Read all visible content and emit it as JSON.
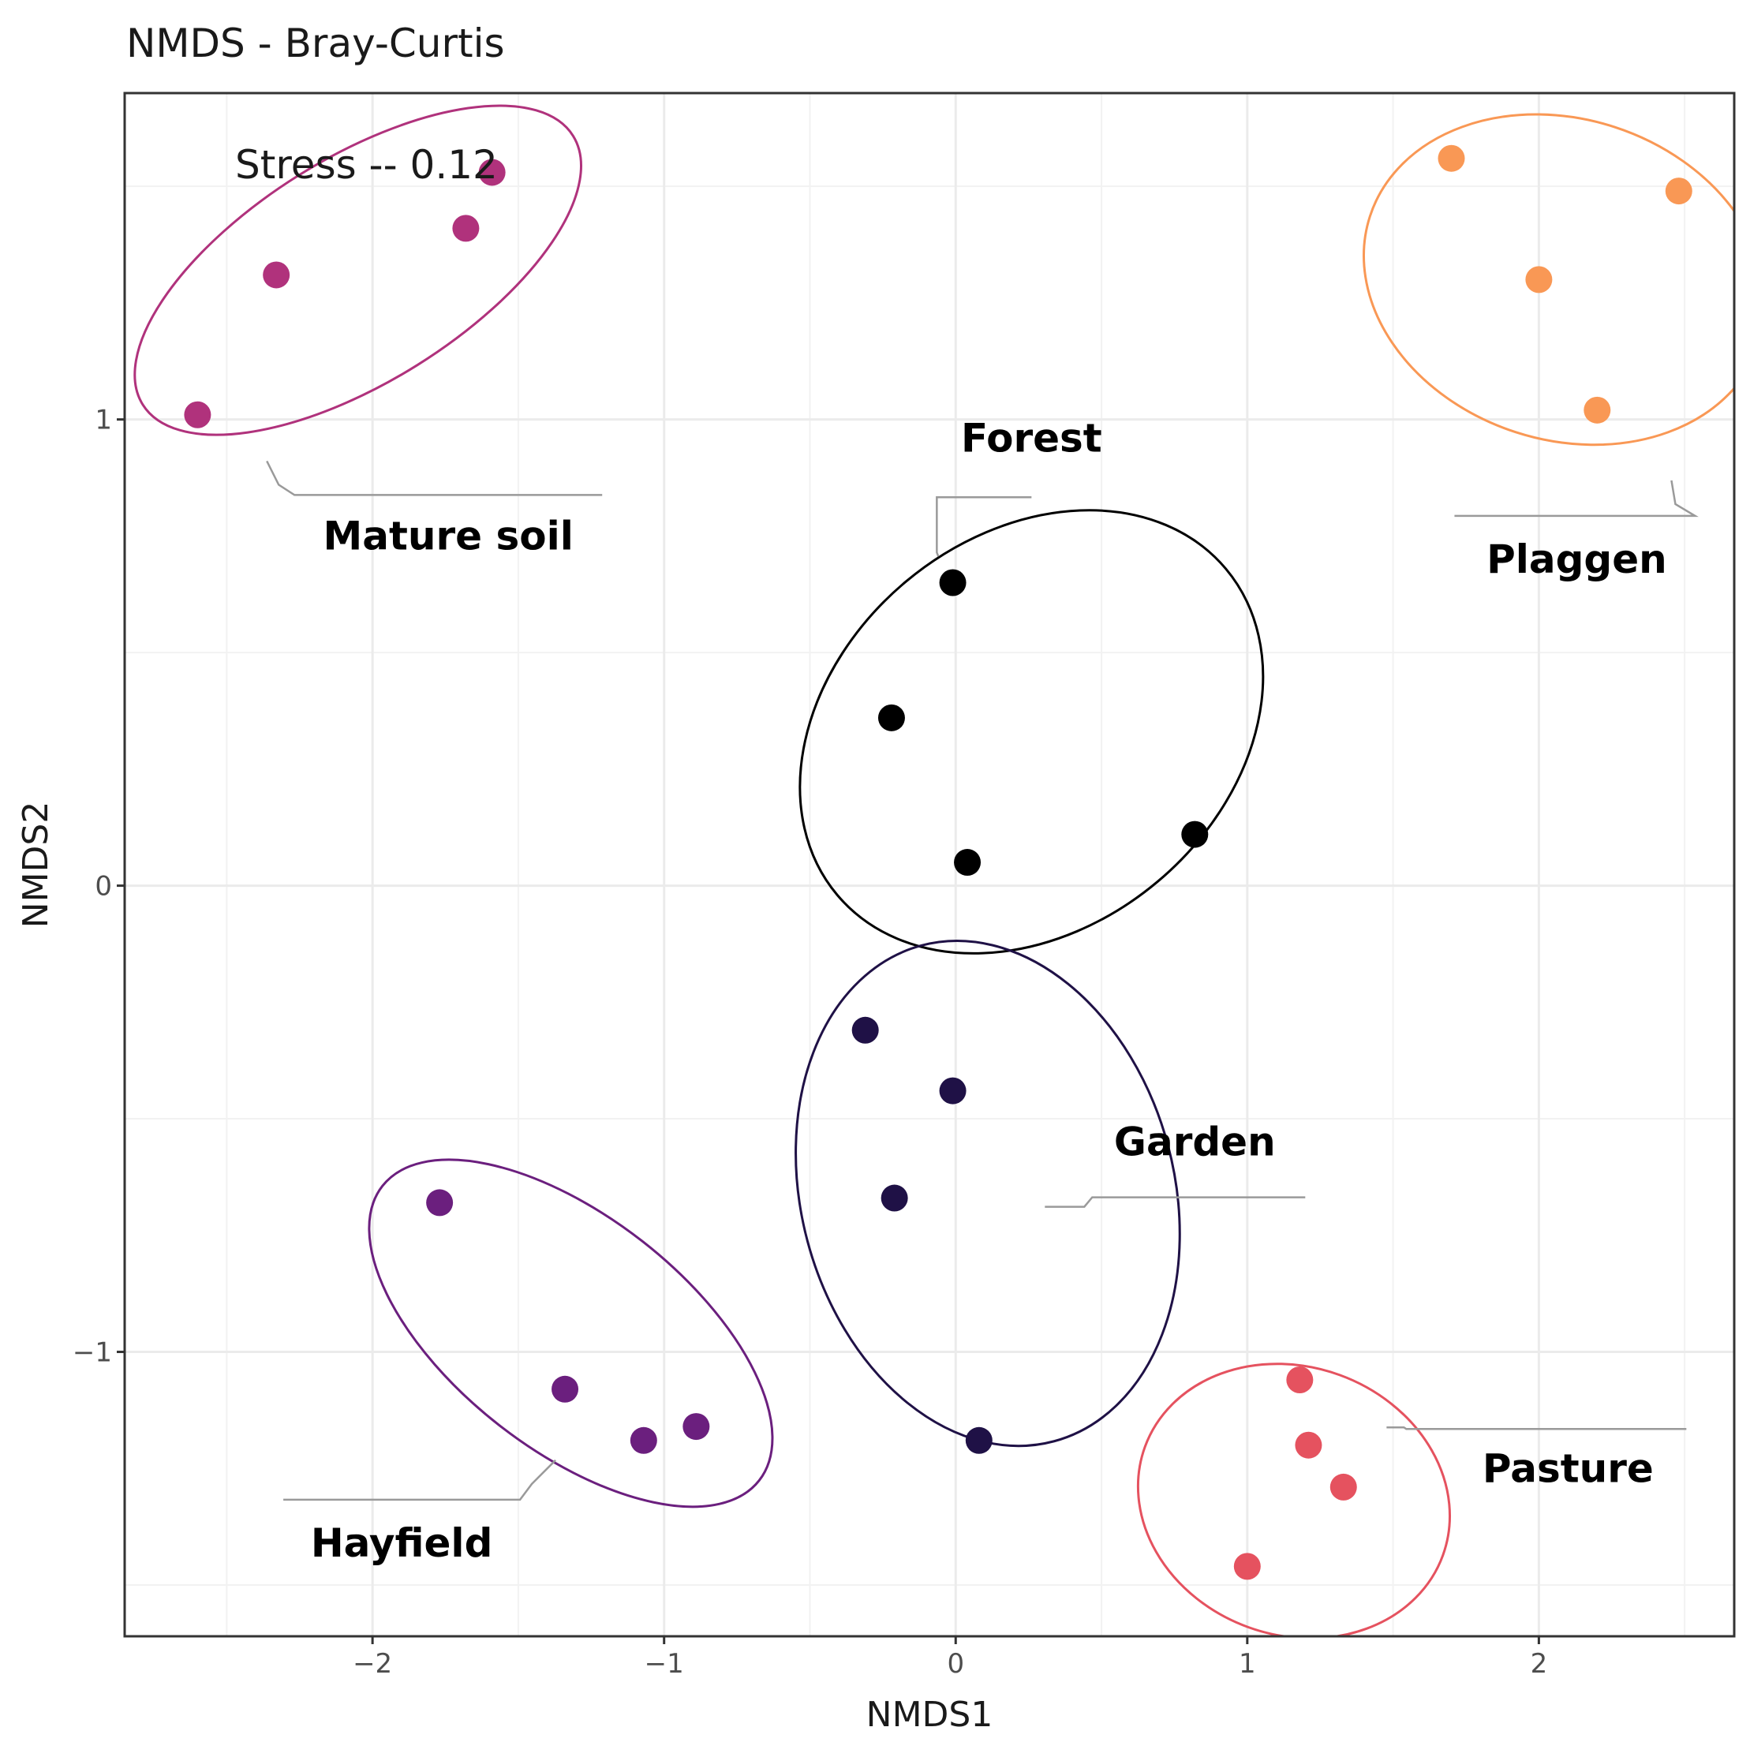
{
  "chart_data": {
    "type": "scatter",
    "title": "NMDS - Bray-Curtis",
    "xlabel": "NMDS1",
    "ylabel": "NMDS2",
    "xlim": [
      -2.85,
      2.67
    ],
    "ylim": [
      -1.61,
      1.7
    ],
    "x_ticks": [
      -2,
      -1,
      0,
      1,
      2
    ],
    "x_tick_labels": [
      "−2",
      "−1",
      "0",
      "1",
      "2"
    ],
    "y_ticks": [
      -1,
      0,
      1
    ],
    "y_tick_labels": [
      "−1",
      "0",
      "1"
    ],
    "grid": true,
    "annotation": "Stress -- 0.12",
    "series": [
      {
        "name": "Forest",
        "color": "#000000",
        "points": [
          [
            -0.01,
            0.65
          ],
          [
            -0.22,
            0.36
          ],
          [
            0.04,
            0.05
          ],
          [
            0.82,
            0.11
          ]
        ],
        "ellipse": {
          "cx": 0.26,
          "cy": 0.33,
          "rx": 0.87,
          "ry": 0.42,
          "angle_deg": -40
        },
        "label_anchor": [
          0.26,
          0.96
        ]
      },
      {
        "name": "Garden",
        "color": "#1f1146",
        "points": [
          [
            -0.31,
            -0.31
          ],
          [
            -0.01,
            -0.44
          ],
          [
            -0.21,
            -0.67
          ],
          [
            0.08,
            -1.19
          ]
        ],
        "ellipse": {
          "cx": 0.11,
          "cy": -0.66,
          "rx": 0.88,
          "ry": 0.4,
          "angle_deg": 75
        },
        "label_anchor": [
          0.82,
          -0.55
        ]
      },
      {
        "name": "Hayfield",
        "color": "#6b1f7e",
        "points": [
          [
            -1.77,
            -0.68
          ],
          [
            -1.34,
            -1.08
          ],
          [
            -1.07,
            -1.19
          ],
          [
            -0.89,
            -1.16
          ]
        ],
        "ellipse": {
          "cx": -1.32,
          "cy": -0.96,
          "rx": 0.82,
          "ry": 0.25,
          "angle_deg": 38
        },
        "label_anchor": [
          -1.9,
          -1.41
        ]
      },
      {
        "name": "Mature soil",
        "color": "#b0327c",
        "points": [
          [
            -2.6,
            1.01
          ],
          [
            -2.33,
            1.31
          ],
          [
            -1.68,
            1.41
          ],
          [
            -1.59,
            1.53
          ]
        ],
        "ellipse": {
          "cx": -2.05,
          "cy": 1.32,
          "rx": 0.87,
          "ry": 0.24,
          "angle_deg": -32
        },
        "label_anchor": [
          -1.74,
          0.75
        ]
      },
      {
        "name": "Pasture",
        "color": "#e5525f",
        "points": [
          [
            1.18,
            -1.06
          ],
          [
            1.21,
            -1.2
          ],
          [
            1.33,
            -1.29
          ],
          [
            1.0,
            -1.46
          ]
        ],
        "ellipse": {
          "cx": 1.16,
          "cy": -1.32,
          "rx": 0.46,
          "ry": 0.34,
          "angle_deg": -70
        },
        "label_anchor": [
          2.1,
          -1.25
        ]
      },
      {
        "name": "Plaggen",
        "color": "#f99855",
        "points": [
          [
            1.7,
            1.56
          ],
          [
            2.48,
            1.49
          ],
          [
            2.0,
            1.3
          ],
          [
            2.2,
            1.02
          ]
        ],
        "ellipse": {
          "cx": 2.09,
          "cy": 1.3,
          "rx": 0.55,
          "ry": 0.44,
          "angle_deg": -72
        },
        "label_anchor": [
          2.13,
          0.7
        ]
      }
    ]
  }
}
